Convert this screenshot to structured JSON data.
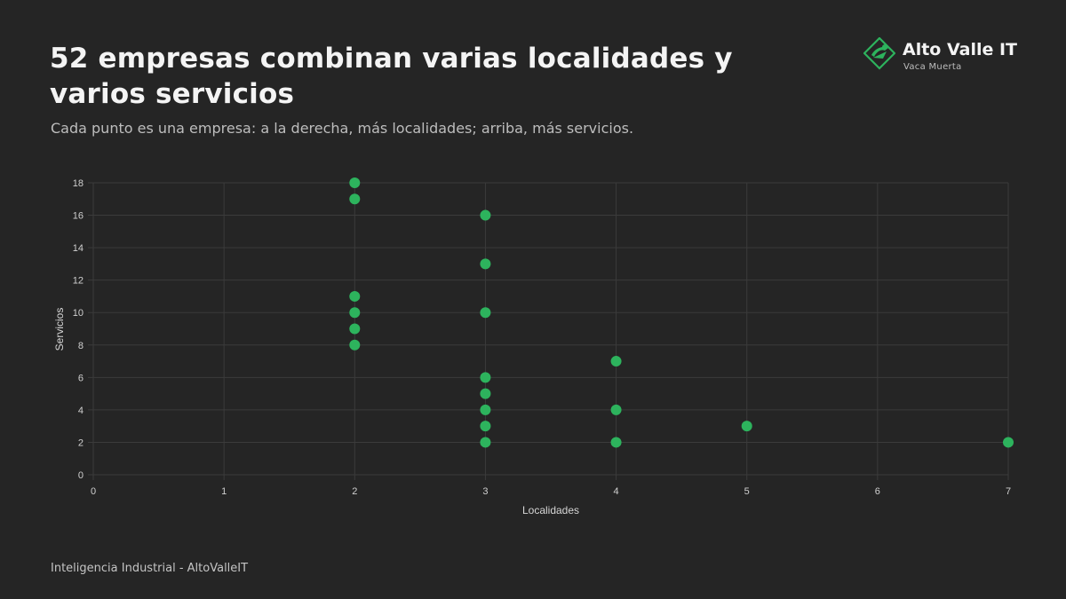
{
  "header": {
    "title": "52 empresas combinan varias localidades y varios servicios",
    "subtitle": "Cada punto es una empresa: a la derecha, más localidades; arriba, más servicios."
  },
  "brand": {
    "name": "Alto Valle IT",
    "tagline": "Vaca Muerta",
    "logo_icon": "map-pin-icon"
  },
  "footer": {
    "text": "Inteligencia Industrial - AltoValleIT"
  },
  "colors": {
    "background": "#252525",
    "point": "#2db35d",
    "grid": "#3b3b3b",
    "accent": "#2db35d"
  },
  "chart_data": {
    "type": "scatter",
    "title": "",
    "xlabel": "Localidades",
    "ylabel": "Servicios",
    "xlim": [
      0,
      7
    ],
    "ylim": [
      0,
      18
    ],
    "xticks": [
      0,
      1,
      2,
      3,
      4,
      5,
      6,
      7
    ],
    "yticks": [
      0,
      2,
      4,
      6,
      8,
      10,
      12,
      14,
      16,
      18
    ],
    "grid": true,
    "legend": "none",
    "series": [
      {
        "points": [
          {
            "x": 2,
            "y": 18
          },
          {
            "x": 2,
            "y": 17
          },
          {
            "x": 2,
            "y": 11
          },
          {
            "x": 2,
            "y": 10
          },
          {
            "x": 2,
            "y": 9
          },
          {
            "x": 2,
            "y": 8
          },
          {
            "x": 3,
            "y": 16
          },
          {
            "x": 3,
            "y": 13
          },
          {
            "x": 3,
            "y": 10
          },
          {
            "x": 3,
            "y": 6
          },
          {
            "x": 3,
            "y": 5
          },
          {
            "x": 3,
            "y": 4
          },
          {
            "x": 3,
            "y": 3
          },
          {
            "x": 3,
            "y": 2
          },
          {
            "x": 4,
            "y": 7
          },
          {
            "x": 4,
            "y": 4
          },
          {
            "x": 4,
            "y": 2
          },
          {
            "x": 5,
            "y": 3
          },
          {
            "x": 7,
            "y": 2
          }
        ]
      }
    ]
  }
}
